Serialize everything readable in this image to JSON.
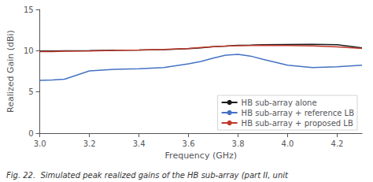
{
  "chart_data": {
    "type": "line",
    "title": "",
    "xlabel": "Frequency (GHz)",
    "ylabel": "Realized Gain (dBi)",
    "annotations": [
      "Fig. 22.  Simulated peak realized gains of the HB sub-array (part II, unit"
    ],
    "x": [
      3.0,
      3.05,
      3.1,
      3.2,
      3.3,
      3.4,
      3.5,
      3.6,
      3.65,
      3.7,
      3.75,
      3.8,
      3.85,
      3.9,
      4.0,
      4.1,
      4.2,
      4.3
    ],
    "series": [
      {
        "name": "HB sub-array alone",
        "color": "#1a1a1a",
        "values": [
          9.95,
          9.97,
          9.98,
          10.0,
          10.05,
          10.08,
          10.12,
          10.25,
          10.35,
          10.48,
          10.55,
          10.65,
          10.68,
          10.72,
          10.75,
          10.78,
          10.72,
          10.35
        ]
      },
      {
        "name": "HB sub-array + reference LB",
        "color": "#4472c4",
        "values": [
          6.4,
          6.45,
          6.55,
          7.55,
          7.75,
          7.82,
          7.95,
          8.4,
          8.7,
          9.1,
          9.45,
          9.55,
          9.35,
          8.95,
          8.25,
          7.95,
          8.05,
          8.25
        ]
      },
      {
        "name": "HB sub-array + proposed LB",
        "color": "#c0392b",
        "values": [
          9.88,
          9.9,
          9.93,
          9.97,
          10.02,
          10.08,
          10.15,
          10.28,
          10.38,
          10.48,
          10.55,
          10.6,
          10.62,
          10.65,
          10.62,
          10.58,
          10.45,
          10.28
        ]
      }
    ],
    "xlim": [
      3.0,
      4.3
    ],
    "ylim": [
      0,
      15
    ],
    "xticks": [
      {
        "value": 3.0,
        "label": "3.0"
      },
      3.2,
      3.4,
      3.6,
      3.8,
      {
        "value": 4.0,
        "label": "4.0"
      },
      4.2
    ],
    "yticks": [
      0,
      5,
      10,
      15
    ],
    "grid": false,
    "legend": "lower right"
  }
}
